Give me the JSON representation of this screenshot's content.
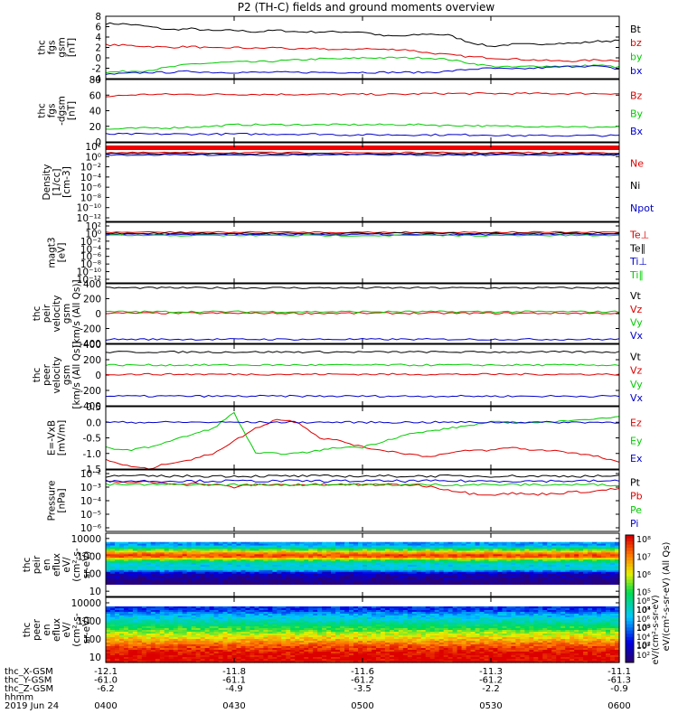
{
  "title": "P2 (TH-C) fields and ground moments overview",
  "chart_data": [
    {
      "type": "line",
      "panel": "fgs",
      "ylabel_lines": [
        "thc",
        "fgs",
        "gsm",
        "[nT]"
      ],
      "ylim": [
        -4,
        8
      ],
      "yticks": [
        "-4",
        "-2",
        "0",
        "2",
        "4",
        "6",
        "8"
      ],
      "legend": [
        "Bt",
        "bz",
        "by",
        "bx"
      ],
      "legend_colors": [
        "#000000",
        "#dd0000",
        "#00cc00",
        "#0000cc"
      ],
      "x": [
        0,
        5,
        10,
        15,
        20,
        25,
        30,
        35,
        40,
        45,
        50,
        55,
        60,
        65,
        70,
        75,
        80,
        85,
        90,
        95,
        100,
        105,
        110,
        115,
        120
      ],
      "series": [
        {
          "name": "Bt",
          "values": [
            6.6,
            6.5,
            6.0,
            5.4,
            5.6,
            5.2,
            5.3,
            5.0,
            5.3,
            5.0,
            5.0,
            5.0,
            5.0,
            4.2,
            4.2,
            4.6,
            4.4,
            3.0,
            2.2,
            2.6,
            2.6,
            2.8,
            2.8,
            3.2,
            3.3
          ]
        },
        {
          "name": "bz",
          "values": [
            2.5,
            2.4,
            2.2,
            2.0,
            2.2,
            1.8,
            2.0,
            1.8,
            2.0,
            1.6,
            1.8,
            1.5,
            1.8,
            1.6,
            1.6,
            1.0,
            0.6,
            0.2,
            0.0,
            -0.2,
            -0.4,
            -0.6,
            -0.6,
            -0.4,
            -0.5
          ]
        },
        {
          "name": "by",
          "values": [
            -2.8,
            -2.6,
            -2.4,
            -1.8,
            -1.2,
            -1.0,
            -0.8,
            -0.8,
            -0.6,
            -0.4,
            -0.2,
            -0.2,
            0.0,
            0.0,
            0.0,
            0.0,
            -0.3,
            -1.0,
            -1.6,
            -1.8,
            -1.6,
            -1.6,
            -1.6,
            -1.4,
            -1.8
          ]
        },
        {
          "name": "bx",
          "values": [
            -3.2,
            -3.0,
            -2.8,
            -2.8,
            -2.6,
            -2.8,
            -2.8,
            -2.8,
            -2.8,
            -2.8,
            -2.8,
            -2.8,
            -2.8,
            -2.8,
            -2.8,
            -2.8,
            -2.6,
            -2.2,
            -2.0,
            -2.2,
            -2.0,
            -1.8,
            -1.6,
            -1.6,
            -2.2
          ]
        }
      ]
    },
    {
      "type": "line",
      "panel": "fgs_dgsm",
      "ylabel_lines": [
        "thc",
        "fgs",
        "-dgsm",
        "[nT]"
      ],
      "ylim": [
        0,
        80
      ],
      "yticks": [
        "0",
        "20",
        "40",
        "60",
        "80"
      ],
      "legend": [
        "Bz",
        "By",
        "Bx"
      ],
      "legend_colors": [
        "#dd0000",
        "#00cc00",
        "#0000cc"
      ],
      "series": [
        {
          "name": "Bz",
          "values": [
            58,
            60,
            61,
            61,
            61,
            61,
            61,
            61,
            61,
            61,
            61,
            61,
            61,
            61,
            61,
            62,
            62,
            62,
            62,
            62,
            62,
            62,
            62,
            62,
            62
          ]
        },
        {
          "name": "By",
          "values": [
            16,
            17,
            18,
            18,
            19,
            20,
            22,
            22,
            22,
            22,
            22,
            22,
            22,
            22,
            22,
            22,
            21,
            21,
            20,
            20,
            20,
            20,
            19,
            19,
            19
          ]
        },
        {
          "name": "Bx",
          "values": [
            10,
            10,
            10,
            10,
            10,
            10,
            10,
            10,
            10,
            10,
            10,
            9,
            9,
            9,
            9,
            9,
            9,
            9,
            9,
            8,
            8,
            8,
            8,
            8,
            8
          ]
        }
      ]
    },
    {
      "type": "line",
      "panel": "density",
      "ylabel_lines": [
        "Density",
        "[1/cc]",
        "[cm-3]"
      ],
      "ylim_log": [
        -14,
        2
      ],
      "yticks": [
        "10²",
        "10⁰",
        "10⁻²",
        "10⁻⁴",
        "10⁻⁶",
        "10⁻⁸",
        "10⁻¹⁰",
        "10⁻¹²"
      ],
      "legend": [
        "Ne",
        "Ni",
        "Npot"
      ],
      "legend_colors": [
        "#dd0000",
        "#000000",
        "#0000cc"
      ]
    },
    {
      "type": "line",
      "panel": "temperature",
      "ylabel_lines": [
        "magt3",
        "[eV]"
      ],
      "ylim_log": [
        -14,
        2
      ],
      "yticks": [
        "10²",
        "10⁰",
        "10⁻²",
        "10⁻⁴",
        "10⁻⁶",
        "10⁻⁸",
        "10⁻¹⁰",
        "10⁻¹²"
      ],
      "legend": [
        "Te⊥",
        "Te∥",
        "Ti⊥",
        "Ti∥"
      ],
      "legend_colors": [
        "#dd0000",
        "#000000",
        "#0000cc",
        "#00cc00"
      ]
    },
    {
      "type": "line",
      "panel": "peir_velocity",
      "ylabel_lines": [
        "thc",
        "peir",
        "velocity",
        "gsm",
        "[km/s (All Qs)]"
      ],
      "ylim": [
        -400,
        400
      ],
      "yticks": [
        "400",
        "200",
        "0",
        "-200",
        "-400"
      ],
      "legend": [
        "Vt",
        "Vz",
        "Vy",
        "Vx"
      ],
      "legend_colors": [
        "#000000",
        "#dd0000",
        "#00cc00",
        "#0000cc"
      ],
      "series": [
        {
          "name": "Vt",
          "values": [
            345,
            345,
            345,
            345,
            345,
            345,
            345,
            345,
            345,
            345,
            345,
            345,
            345,
            345,
            345,
            345,
            345,
            345,
            345,
            345,
            345,
            345,
            345,
            345,
            345
          ]
        },
        {
          "name": "Vz",
          "values": [
            5,
            5,
            5,
            5,
            5,
            5,
            5,
            5,
            5,
            5,
            5,
            5,
            5,
            5,
            5,
            5,
            5,
            5,
            5,
            5,
            5,
            5,
            5,
            5,
            5
          ]
        },
        {
          "name": "Vy",
          "values": [
            25,
            25,
            25,
            25,
            25,
            25,
            25,
            25,
            25,
            25,
            25,
            25,
            25,
            25,
            25,
            25,
            25,
            25,
            25,
            25,
            25,
            25,
            25,
            25,
            25
          ]
        },
        {
          "name": "Vx",
          "values": [
            -345,
            -345,
            -345,
            -345,
            -345,
            -345,
            -345,
            -345,
            -345,
            -345,
            -345,
            -345,
            -345,
            -345,
            -345,
            -345,
            -345,
            -345,
            -345,
            -345,
            -345,
            -345,
            -345,
            -345,
            -345
          ]
        }
      ]
    },
    {
      "type": "line",
      "panel": "peer_velocity",
      "ylabel_lines": [
        "thc",
        "peer",
        "velocity",
        "gsm",
        "[km/s (All Qs)]"
      ],
      "ylim": [
        -400,
        400
      ],
      "yticks": [
        "400",
        "200",
        "0",
        "-200",
        "-400"
      ],
      "legend": [
        "Vt",
        "Vz",
        "Vy",
        "Vx"
      ],
      "legend_colors": [
        "#000000",
        "#dd0000",
        "#00cc00",
        "#0000cc"
      ],
      "series": [
        {
          "name": "Vt",
          "values": [
            300,
            300,
            300,
            300,
            300,
            300,
            300,
            300,
            300,
            300,
            300,
            300,
            300,
            300,
            300,
            300,
            300,
            300,
            300,
            300,
            300,
            300,
            300,
            300,
            300
          ]
        },
        {
          "name": "Vz",
          "values": [
            10,
            10,
            10,
            10,
            10,
            10,
            10,
            10,
            10,
            10,
            10,
            10,
            10,
            10,
            10,
            10,
            10,
            10,
            10,
            10,
            10,
            10,
            10,
            10,
            10
          ]
        },
        {
          "name": "Vy",
          "values": [
            130,
            130,
            130,
            130,
            130,
            130,
            130,
            130,
            130,
            130,
            130,
            130,
            130,
            130,
            130,
            130,
            130,
            130,
            130,
            130,
            130,
            130,
            130,
            130,
            130
          ]
        },
        {
          "name": "Vx",
          "values": [
            -275,
            -275,
            -275,
            -275,
            -275,
            -275,
            -275,
            -275,
            -275,
            -275,
            -275,
            -275,
            -275,
            -275,
            -275,
            -275,
            -275,
            -275,
            -275,
            -275,
            -275,
            -275,
            -275,
            -275,
            -275
          ]
        }
      ]
    },
    {
      "type": "line",
      "panel": "efield",
      "ylabel_lines": [
        "E=-VxB",
        "[mV/m]"
      ],
      "ylim": [
        -1.5,
        0.5
      ],
      "yticks": [
        "0.5",
        "0.0",
        "-0.5",
        "-1.0",
        "-1.5"
      ],
      "legend": [
        "Ez",
        "Ey",
        "Ex"
      ],
      "legend_colors": [
        "#dd0000",
        "#00cc00",
        "#0000cc"
      ],
      "series": [
        {
          "name": "Ez",
          "values": [
            -1.2,
            -1.4,
            -1.5,
            -1.3,
            -1.2,
            -1.0,
            -0.6,
            -0.2,
            0.1,
            0.0,
            -0.5,
            -0.6,
            -0.8,
            -0.9,
            -1.0,
            -1.1,
            -1.0,
            -0.9,
            -0.9,
            -0.8,
            -0.9,
            -0.9,
            -1.0,
            -1.1,
            -1.3
          ]
        },
        {
          "name": "Ey",
          "values": [
            -0.8,
            -0.9,
            -0.8,
            -0.6,
            -0.4,
            -0.2,
            0.3,
            -1.0,
            -1.0,
            -1.0,
            -0.9,
            -0.8,
            -0.8,
            -0.6,
            -0.4,
            -0.3,
            -0.2,
            -0.1,
            0.0,
            0.0,
            0.0,
            0.0,
            0.1,
            0.1,
            0.2
          ]
        },
        {
          "name": "Ex",
          "values": [
            0.0,
            0.0,
            0.0,
            0.0,
            0.0,
            0.0,
            0.0,
            0.0,
            0.0,
            0.0,
            0.0,
            0.0,
            0.0,
            0.0,
            0.0,
            0.0,
            0.0,
            0.0,
            0.0,
            0.0,
            0.0,
            0.0,
            0.0,
            0.0,
            0.0
          ]
        }
      ]
    },
    {
      "type": "line",
      "panel": "pressure",
      "ylabel_lines": [
        "Pressure",
        "[nPa]"
      ],
      "ylim_log": [
        -6,
        -1
      ],
      "yticks": [
        "10⁻²",
        "10⁻³",
        "10⁻⁴",
        "10⁻⁵",
        "10⁻⁶"
      ],
      "legend": [
        "Pt",
        "Pb",
        "Pe",
        "Pi"
      ],
      "legend_colors": [
        "#000000",
        "#dd0000",
        "#00cc00",
        "#0000cc"
      ],
      "series_log10": [
        {
          "name": "Pt",
          "values": [
            -1.5,
            -1.5,
            -1.5,
            -1.5,
            -1.5,
            -1.5,
            -1.5,
            -1.5,
            -1.5,
            -1.5,
            -1.5,
            -1.5,
            -1.5,
            -1.5,
            -1.5,
            -1.5,
            -1.5,
            -1.5,
            -1.5,
            -1.5,
            -1.5,
            -1.5,
            -1.5,
            -1.5,
            -1.5
          ]
        },
        {
          "name": "Pb",
          "values": [
            -2.0,
            -2.0,
            -2.0,
            -2.1,
            -2.1,
            -2.2,
            -2.4,
            -2.2,
            -2.2,
            -2.2,
            -2.2,
            -2.2,
            -2.2,
            -2.2,
            -2.2,
            -2.3,
            -2.6,
            -2.9,
            -3.0,
            -2.9,
            -3.0,
            -2.9,
            -2.8,
            -2.7,
            -2.5
          ]
        },
        {
          "name": "Pe",
          "values": [
            -2.2,
            -2.2,
            -2.2,
            -2.2,
            -2.2,
            -2.2,
            -2.2,
            -2.2,
            -2.2,
            -2.2,
            -2.2,
            -2.2,
            -2.2,
            -2.2,
            -2.2,
            -2.2,
            -2.2,
            -2.2,
            -2.2,
            -2.2,
            -2.2,
            -2.2,
            -2.2,
            -2.2,
            -2.2
          ]
        },
        {
          "name": "Pi",
          "values": [
            -1.9,
            -1.9,
            -1.9,
            -1.9,
            -1.9,
            -1.9,
            -1.9,
            -1.9,
            -1.9,
            -1.9,
            -1.9,
            -1.9,
            -1.9,
            -1.9,
            -1.9,
            -1.9,
            -1.9,
            -1.9,
            -1.9,
            -1.9,
            -1.9,
            -1.9,
            -1.9,
            -1.9,
            -1.9
          ]
        }
      ]
    },
    {
      "type": "heatmap",
      "panel": "peir_eflux",
      "ylabel_lines": [
        "thc",
        "peir",
        "en",
        "eflux",
        "eV/",
        "(cm²-s-",
        "sr-eV)"
      ],
      "yticks": [
        "10000",
        "1000",
        "100",
        "10"
      ],
      "ylim_log": [
        0.7,
        4.3
      ],
      "colorbar_label": "eV/(cm²-s-sr-eV) (All Qs)",
      "colorbar_ticks": [
        "10⁸",
        "10⁷",
        "10⁶",
        "10⁵",
        "10⁴",
        "10³",
        "10²"
      ],
      "profile_log10_energy": [
        1.5,
        2.0,
        2.3,
        2.5,
        2.7,
        2.9,
        3.0,
        3.2,
        3.4,
        3.6
      ],
      "profile_level": [
        0.0,
        0.1,
        0.45,
        0.35,
        0.5,
        0.8,
        0.95,
        0.8,
        0.55,
        0.3
      ]
    },
    {
      "type": "heatmap",
      "panel": "peer_eflux",
      "ylabel_lines": [
        "thc",
        "peer",
        "en",
        "eflux",
        "eV/",
        "(cm²-s-",
        "sr-eV)"
      ],
      "yticks": [
        "10000",
        "1000",
        "100",
        "10"
      ],
      "ylim_log": [
        0.7,
        4.3
      ],
      "colorbar_label": "eV/(cm²-s-sr-eV)",
      "colorbar_ticks": [
        "10⁸",
        "10⁷",
        "10⁶",
        "10⁵",
        "10⁴",
        "10³",
        "10²"
      ],
      "profile_log10_energy": [
        0.8,
        1.0,
        1.3,
        1.6,
        1.9,
        2.2,
        2.5,
        2.8,
        3.1,
        3.4,
        3.6
      ],
      "profile_level": [
        1.0,
        1.0,
        0.97,
        0.9,
        0.8,
        0.7,
        0.6,
        0.5,
        0.4,
        0.3,
        0.2
      ]
    }
  ],
  "x_axis": {
    "row_labels": [
      "thc_X-GSM",
      "thc_Y-GSM",
      "thc_Z-GSM",
      "hhmm",
      "2019 Jun 24"
    ],
    "ticks": [
      {
        "x": -12.1,
        "y": -61.0,
        "z": -6.2,
        "time": "0400"
      },
      {
        "x": -11.8,
        "y": -61.1,
        "z": -4.9,
        "time": "0430"
      },
      {
        "x": -11.6,
        "y": -61.2,
        "z": -3.5,
        "time": "0500"
      },
      {
        "x": -11.3,
        "y": -61.2,
        "z": -2.2,
        "time": "0530"
      },
      {
        "x": -11.1,
        "y": -61.3,
        "z": -0.9,
        "time": "0600"
      }
    ]
  }
}
